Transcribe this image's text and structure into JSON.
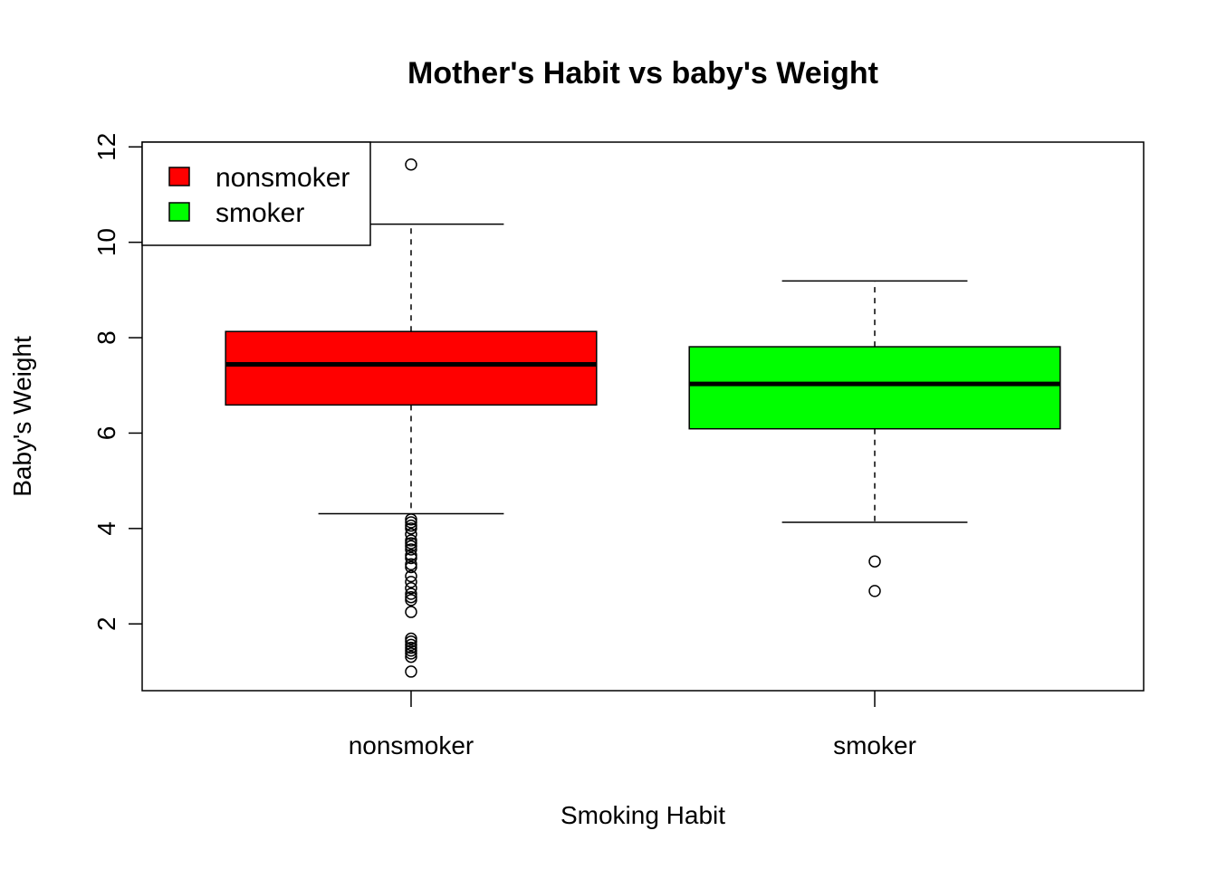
{
  "chart_data": {
    "type": "boxplot",
    "title": "Mother's Habit vs baby's Weight",
    "xlabel": "Smoking Habit",
    "ylabel": "Baby's Weight",
    "ylim": [
      0.6,
      12.1
    ],
    "yticks": [
      2,
      4,
      6,
      8,
      10,
      12
    ],
    "yticks_labels": [
      "2",
      "4",
      "6",
      "8",
      "10",
      "12"
    ],
    "categories": [
      "nonsmoker",
      "smoker"
    ],
    "legend": {
      "position": "top-left",
      "items": [
        {
          "label": "nonsmoker",
          "color": "#ff0000"
        },
        {
          "label": "smoker",
          "color": "#00ff00"
        }
      ]
    },
    "boxes": [
      {
        "name": "nonsmoker",
        "color": "#ff0000",
        "whisker_low": 4.31,
        "q1": 6.59,
        "median": 7.44,
        "q3": 8.13,
        "whisker_high": 10.38,
        "outliers": [
          11.63,
          4.19,
          4.13,
          4.06,
          4.0,
          3.88,
          3.75,
          3.69,
          3.63,
          3.56,
          3.44,
          3.38,
          3.25,
          3.19,
          3.0,
          2.88,
          2.75,
          2.63,
          2.56,
          2.5,
          2.25,
          1.69,
          1.63,
          1.56,
          1.5,
          1.44,
          1.38,
          1.31,
          1.0
        ]
      },
      {
        "name": "smoker",
        "color": "#00ff00",
        "whisker_low": 4.13,
        "q1": 6.09,
        "median": 7.03,
        "q3": 7.81,
        "whisker_high": 9.19,
        "outliers": [
          3.31,
          2.69
        ]
      }
    ]
  }
}
